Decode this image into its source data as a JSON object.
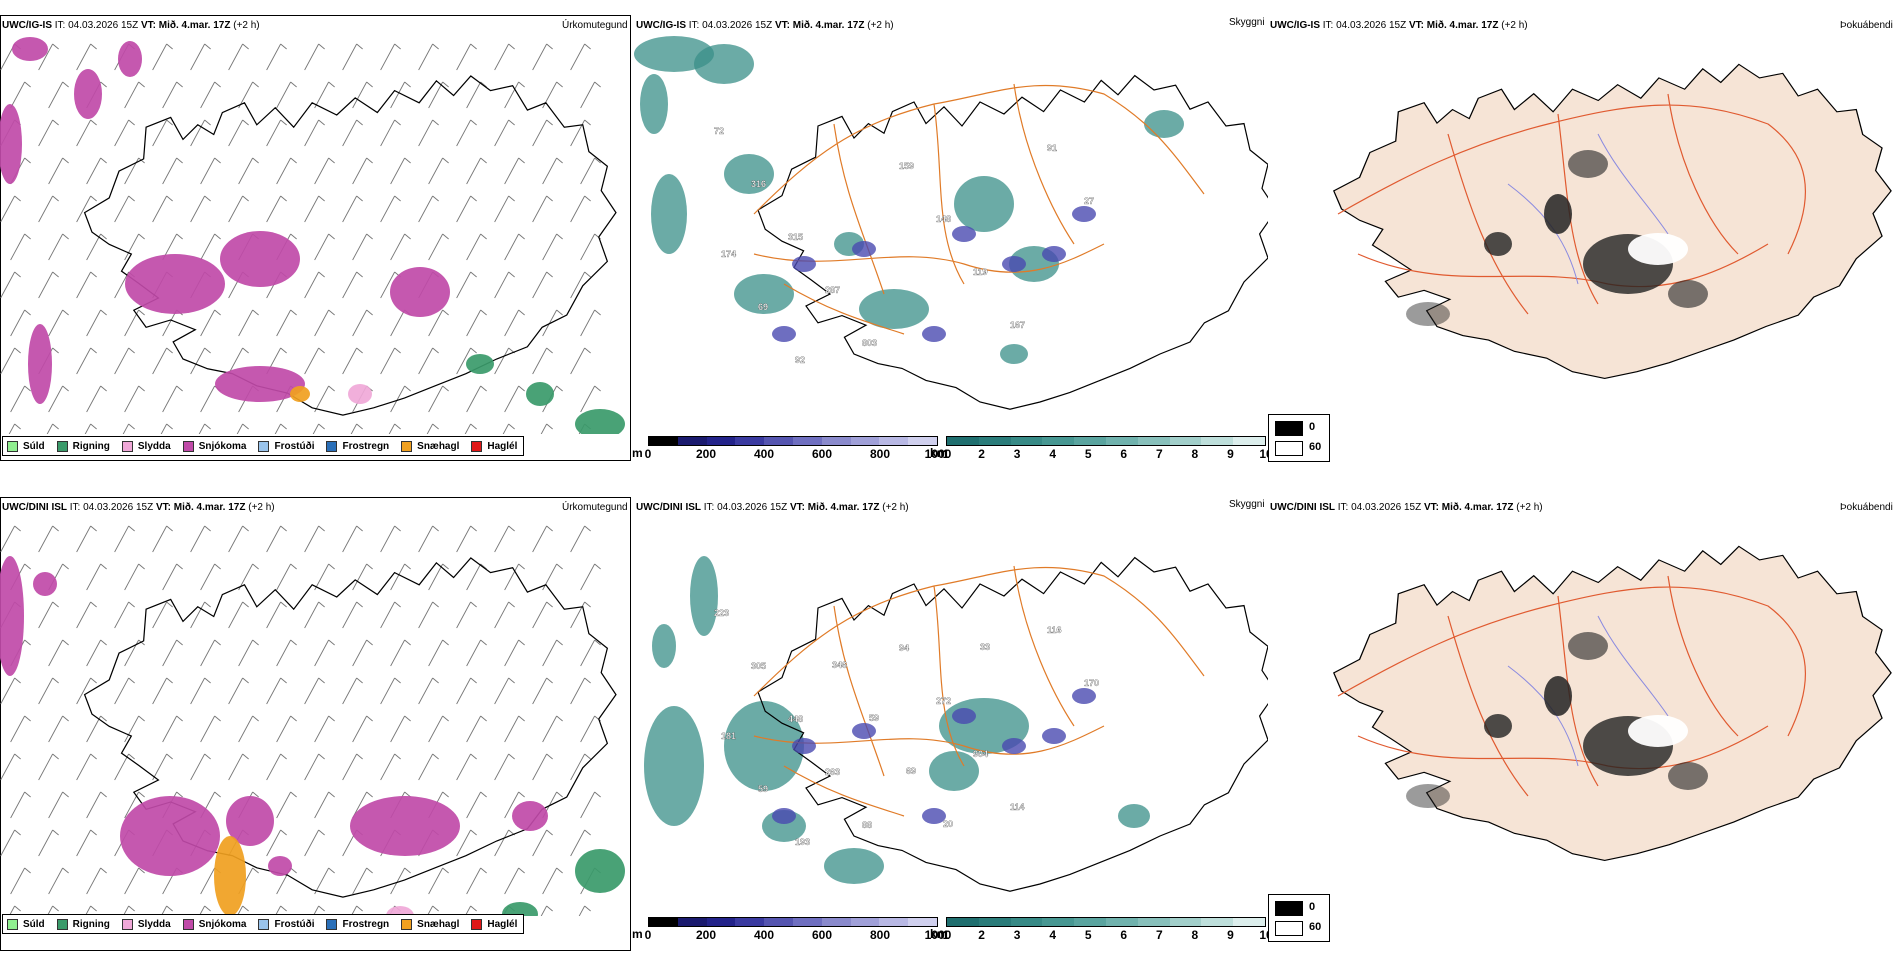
{
  "rows": [
    {
      "panels": [
        {
          "model": "UWC/IG-IS",
          "init": "IT: 04.03.2026 15Z",
          "valid_label": "VT:",
          "valid_time": "Mið. 4.mar. 17Z",
          "lead": "(+2 h)",
          "title": "Úrkomutegund"
        },
        {
          "model": "UWC/IG-IS",
          "init": "IT: 04.03.2026 15Z",
          "valid_label": "VT:",
          "valid_time": "Mið. 4.mar. 17Z",
          "lead": "(+2 h)",
          "title": "Skyggni"
        },
        {
          "model": "UWC/IG-IS",
          "init": "IT: 04.03.2026 15Z",
          "valid_label": "VT:",
          "valid_time": "Mið. 4.mar. 17Z",
          "lead": "(+2 h)",
          "title": "Þokuábendi"
        }
      ],
      "cloud_base_labels": [
        "72",
        "316",
        "315",
        "287",
        "803",
        "159",
        "148",
        "119",
        "167",
        "91",
        "27",
        "174",
        "69",
        "92"
      ],
      "cloud_legend": {
        "min": "0",
        "max": "60"
      }
    },
    {
      "panels": [
        {
          "model": "UWC/DINI ISL",
          "init": "IT: 04.03.2026 15Z",
          "valid_label": "VT:",
          "valid_time": "Mið. 4.mar. 17Z",
          "lead": "(+2 h)",
          "title": "Úrkomutegund"
        },
        {
          "model": "UWC/DINI ISL",
          "init": "IT: 04.03.2026 15Z",
          "valid_label": "VT:",
          "valid_time": "Mið. 4.mar. 17Z",
          "lead": "(+2 h)",
          "title": "Skyggni"
        },
        {
          "model": "UWC/DINI ISL",
          "init": "IT: 04.03.2026 15Z",
          "valid_label": "VT:",
          "valid_time": "Mið. 4.mar. 17Z",
          "lead": "(+2 h)",
          "title": "Þokuábendi"
        }
      ],
      "cloud_base_labels": [
        "223",
        "305",
        "448",
        "263",
        "88",
        "94",
        "272",
        "904",
        "114",
        "116",
        "170",
        "181",
        "59",
        "193",
        "346",
        "59",
        "69",
        "20",
        "33"
      ],
      "cloud_legend": {
        "min": "0",
        "max": "60"
      }
    }
  ],
  "precip_legend": [
    {
      "label": "Súld",
      "color": "#90ee90"
    },
    {
      "label": "Rigning",
      "color": "#3a9a6a"
    },
    {
      "label": "Slydda",
      "color": "#f0a8d8"
    },
    {
      "label": "Snjókoma",
      "color": "#c04aa8"
    },
    {
      "label": "Frostúði",
      "color": "#9ac4ec"
    },
    {
      "label": "Frostregn",
      "color": "#2a6fb8"
    },
    {
      "label": "Snæhagl",
      "color": "#f0a020"
    },
    {
      "label": "Haglél",
      "color": "#e01818"
    }
  ],
  "cloudbase_bar": {
    "unit": "m",
    "ticks": [
      "0",
      "200",
      "400",
      "600",
      "800",
      "1000"
    ],
    "colors": [
      "#000000",
      "#1a1a6e",
      "#23238a",
      "#3a3aa0",
      "#5555b0",
      "#6f6fc0",
      "#8a8acc",
      "#a0a0d8",
      "#b8b8e4",
      "#d0d0ee"
    ]
  },
  "visibility_bar": {
    "unit": "km",
    "ticks": [
      "1",
      "2",
      "3",
      "4",
      "5",
      "6",
      "7",
      "8",
      "9",
      "10"
    ],
    "colors": [
      "#1f6f6f",
      "#2a7c7a",
      "#378a86",
      "#479792",
      "#5aa49f",
      "#70b2ad",
      "#88c0bb",
      "#a2cfca",
      "#bedfdb",
      "#dceeec"
    ]
  }
}
